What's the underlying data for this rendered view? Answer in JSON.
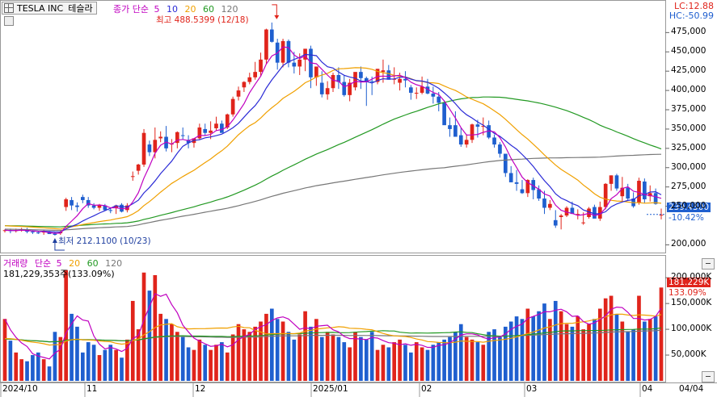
{
  "header": {
    "symbol": "TESLA INC",
    "name_kr": "테슬라",
    "ma_label": "종가 단순",
    "ma_periods": [
      "5",
      "10",
      "20",
      "60",
      "120"
    ],
    "lc": "LC:12.88",
    "hc": "HC:-50.99"
  },
  "annotations": {
    "high": "최고 488.5399 (12/18)",
    "low": "최저 212.1100 (10/23)",
    "last_price": "239.4300",
    "last_change": "-10.42%"
  },
  "volume_header": {
    "label": "거래량",
    "ma_label": "단순",
    "ma_periods": [
      "5",
      "20",
      "60",
      "120"
    ],
    "value": "181,229,353주(133.09%)",
    "last_vol": "181.229K",
    "last_pct": "133.09%"
  },
  "colors": {
    "up": "#e0241b",
    "down": "#1f5fcf",
    "ma5": "#c000c0",
    "ma10": "#2b2bd6",
    "ma20": "#f0a000",
    "ma60": "#229922",
    "ma120": "#777777"
  },
  "price_axis": [
    "475,000",
    "450,000",
    "425,000",
    "400,000",
    "375,000",
    "350,000",
    "325,000",
    "300,000",
    "275,000",
    "250,000",
    "200,000"
  ],
  "volume_axis": [
    "200,000K",
    "150,000K",
    "100,000K",
    "50,000K"
  ],
  "date_axis": [
    "2024/10",
    "11",
    "12",
    "2025/01",
    "02",
    "03",
    "04"
  ],
  "date_right": "04/04",
  "chart_data": {
    "type": "candlestick",
    "title": "TESLA INC 테슬라",
    "x_labels": [
      "2024/10",
      "11",
      "12",
      "2025/01",
      "02",
      "03",
      "04"
    ],
    "ylim": [
      190,
      490
    ],
    "series_ohlc": [
      [
        218,
        220,
        216,
        219
      ],
      [
        219,
        221,
        215,
        218
      ],
      [
        218,
        221,
        216,
        219
      ],
      [
        219,
        222,
        217,
        220
      ],
      [
        220,
        222,
        215,
        217
      ],
      [
        217,
        219,
        214,
        216
      ],
      [
        216,
        218,
        214,
        215
      ],
      [
        216,
        219,
        213,
        217
      ],
      [
        217,
        218,
        214,
        214
      ],
      [
        215,
        217,
        212,
        213
      ],
      [
        215,
        219,
        213,
        217
      ],
      [
        249,
        261,
        244,
        259
      ],
      [
        258,
        262,
        245,
        251
      ],
      [
        251,
        255,
        243,
        249
      ],
      [
        262,
        265,
        254,
        258
      ],
      [
        258,
        262,
        248,
        251
      ],
      [
        251,
        254,
        246,
        248
      ],
      [
        248,
        253,
        244,
        252
      ],
      [
        251,
        253,
        244,
        245
      ],
      [
        245,
        248,
        241,
        244
      ],
      [
        248,
        252,
        240,
        251
      ],
      [
        252,
        254,
        242,
        243
      ],
      [
        245,
        254,
        242,
        251
      ],
      [
        288,
        295,
        283,
        289
      ],
      [
        296,
        305,
        291,
        304
      ],
      [
        304,
        350,
        301,
        345
      ],
      [
        330,
        335,
        315,
        320
      ],
      [
        320,
        352,
        312,
        336
      ],
      [
        338,
        347,
        333,
        340
      ],
      [
        340,
        354,
        321,
        325
      ],
      [
        330,
        337,
        320,
        331
      ],
      [
        332,
        347,
        325,
        346
      ],
      [
        342,
        352,
        336,
        341
      ],
      [
        336,
        342,
        325,
        332
      ],
      [
        332,
        338,
        326,
        338
      ],
      [
        338,
        357,
        336,
        352
      ],
      [
        350,
        357,
        341,
        345
      ],
      [
        345,
        360,
        337,
        348
      ],
      [
        351,
        366,
        348,
        357
      ],
      [
        357,
        361,
        346,
        345
      ],
      [
        352,
        370,
        350,
        369
      ],
      [
        369,
        392,
        366,
        389
      ],
      [
        392,
        405,
        387,
        400
      ],
      [
        404,
        412,
        398,
        411
      ],
      [
        411,
        423,
        408,
        417
      ],
      [
        417,
        437,
        414,
        424
      ],
      [
        424,
        449,
        418,
        440
      ],
      [
        440,
        480,
        434,
        479
      ],
      [
        479,
        488,
        462,
        463
      ],
      [
        462,
        467,
        427,
        436
      ],
      [
        436,
        467,
        430,
        464
      ],
      [
        464,
        466,
        430,
        436
      ],
      [
        436,
        450,
        422,
        431
      ],
      [
        431,
        448,
        420,
        440
      ],
      [
        440,
        454,
        425,
        454
      ],
      [
        454,
        458,
        403,
        417
      ],
      [
        417,
        426,
        406,
        431
      ],
      [
        410,
        425,
        391,
        395
      ],
      [
        395,
        412,
        388,
        403
      ],
      [
        403,
        423,
        398,
        420
      ],
      [
        420,
        430,
        402,
        411
      ],
      [
        411,
        420,
        392,
        394
      ],
      [
        394,
        415,
        386,
        410
      ],
      [
        404,
        422,
        400,
        424
      ],
      [
        424,
        431,
        402,
        416
      ],
      [
        416,
        418,
        380,
        412
      ],
      [
        412,
        418,
        394,
        411
      ],
      [
        411,
        428,
        408,
        428
      ],
      [
        424,
        440,
        410,
        426
      ],
      [
        426,
        433,
        418,
        414
      ],
      [
        414,
        430,
        408,
        415
      ],
      [
        410,
        423,
        400,
        415
      ],
      [
        415,
        425,
        404,
        413
      ],
      [
        404,
        407,
        388,
        397
      ],
      [
        397,
        404,
        389,
        397
      ],
      [
        397,
        418,
        395,
        405
      ],
      [
        405,
        415,
        395,
        396
      ],
      [
        396,
        405,
        383,
        392
      ],
      [
        392,
        398,
        373,
        384
      ],
      [
        384,
        387,
        360,
        355
      ],
      [
        355,
        365,
        340,
        350
      ],
      [
        355,
        373,
        345,
        340
      ],
      [
        342,
        352,
        327,
        330
      ],
      [
        330,
        343,
        326,
        336
      ],
      [
        336,
        357,
        332,
        356
      ],
      [
        356,
        362,
        339,
        353
      ],
      [
        353,
        365,
        342,
        354
      ],
      [
        355,
        361,
        337,
        339
      ],
      [
        339,
        343,
        326,
        330
      ],
      [
        330,
        333,
        313,
        318
      ],
      [
        318,
        316,
        288,
        293
      ],
      [
        293,
        302,
        282,
        281
      ],
      [
        281,
        297,
        270,
        279
      ],
      [
        272,
        284,
        266,
        267
      ],
      [
        267,
        285,
        262,
        284
      ],
      [
        284,
        287,
        259,
        271
      ],
      [
        272,
        277,
        257,
        260
      ],
      [
        260,
        270,
        240,
        248
      ],
      [
        248,
        258,
        245,
        253
      ],
      [
        232,
        245,
        222,
        225
      ],
      [
        236,
        240,
        220,
        238
      ],
      [
        238,
        250,
        236,
        248
      ],
      [
        248,
        256,
        241,
        240
      ],
      [
        240,
        246,
        233,
        240
      ],
      [
        228,
        242,
        226,
        229
      ],
      [
        236,
        249,
        234,
        247
      ],
      [
        249,
        252,
        236,
        234
      ],
      [
        234,
        256,
        231,
        249
      ],
      [
        249,
        280,
        246,
        279
      ],
      [
        279,
        290,
        270,
        290
      ],
      [
        290,
        292,
        270,
        273
      ],
      [
        263,
        288,
        255,
        274
      ],
      [
        274,
        279,
        258,
        260
      ],
      [
        260,
        268,
        248,
        250
      ],
      [
        255,
        287,
        252,
        283
      ],
      [
        282,
        286,
        254,
        259
      ],
      [
        263,
        277,
        256,
        267
      ],
      [
        267,
        273,
        252,
        253
      ],
      [
        239,
        247,
        233,
        239
      ]
    ],
    "volume_K": [
      120,
      78,
      55,
      42,
      38,
      50,
      55,
      42,
      28,
      95,
      85,
      215,
      130,
      105,
      55,
      75,
      70,
      50,
      60,
      70,
      60,
      45,
      80,
      155,
      100,
      210,
      175,
      205,
      130,
      120,
      110,
      95,
      85,
      65,
      60,
      80,
      70,
      60,
      70,
      75,
      55,
      90,
      110,
      100,
      95,
      105,
      115,
      130,
      140,
      120,
      115,
      95,
      80,
      90,
      135,
      105,
      120,
      85,
      95,
      90,
      85,
      75,
      65,
      95,
      85,
      80,
      95,
      60,
      70,
      65,
      75,
      80,
      70,
      55,
      75,
      65,
      60,
      70,
      75,
      80,
      85,
      95,
      110,
      85,
      80,
      75,
      70,
      95,
      100,
      85,
      105,
      115,
      125,
      120,
      140,
      125,
      135,
      150,
      120,
      155,
      135,
      110,
      105,
      125,
      100,
      110,
      120,
      140,
      160,
      165,
      130,
      115,
      95,
      100,
      165,
      115,
      120,
      125,
      181
    ]
  }
}
